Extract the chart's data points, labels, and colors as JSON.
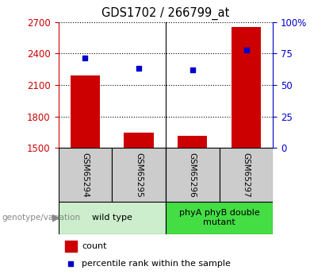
{
  "title": "GDS1702 / 266799_at",
  "samples": [
    "GSM65294",
    "GSM65295",
    "GSM65296",
    "GSM65297"
  ],
  "counts": [
    2190,
    1648,
    1615,
    2650
  ],
  "percentiles": [
    71.5,
    63.0,
    62.0,
    78.0
  ],
  "ylim_left": [
    1500,
    2700
  ],
  "ylim_right": [
    0,
    100
  ],
  "yticks_left": [
    1500,
    1800,
    2100,
    2400,
    2700
  ],
  "yticks_right": [
    0,
    25,
    50,
    75,
    100
  ],
  "ytick_labels_right": [
    "0",
    "25",
    "50",
    "75",
    "100%"
  ],
  "groups": [
    {
      "label": "wild type",
      "indices": [
        0,
        1
      ],
      "color": "#cceecc"
    },
    {
      "label": "phyA phyB double\nmutant",
      "indices": [
        2,
        3
      ],
      "color": "#44dd44"
    }
  ],
  "bar_color": "#cc0000",
  "dot_color": "#0000cc",
  "bar_width": 0.55,
  "left_axis_color": "#cc0000",
  "right_axis_color": "#0000cc",
  "background_color": "#ffffff",
  "tick_box_color": "#cccccc",
  "group_label_text": "genotype/variation",
  "legend_count_label": "count",
  "legend_percentile_label": "percentile rank within the sample"
}
